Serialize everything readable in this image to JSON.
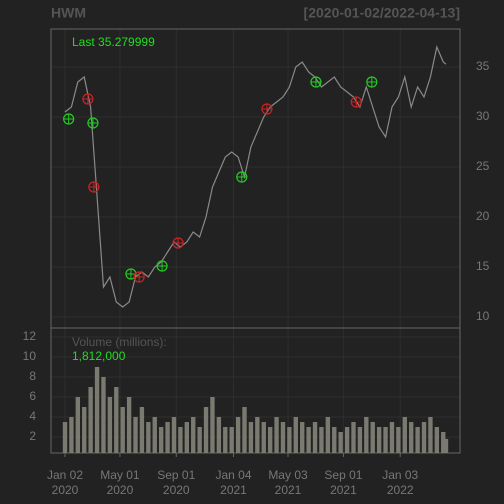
{
  "chart_data": {
    "type": "line",
    "title": "HWM",
    "subtitle": "[2020-01-02/2022-04-13]",
    "last_label": "Last 35.279999",
    "x": [
      "2020-01-02",
      "2020-01-16",
      "2020-01-30",
      "2020-02-13",
      "2020-02-27",
      "2020-03-12",
      "2020-03-26",
      "2020-04-09",
      "2020-04-23",
      "2020-05-07",
      "2020-05-21",
      "2020-06-04",
      "2020-06-18",
      "2020-07-02",
      "2020-07-16",
      "2020-07-30",
      "2020-08-13",
      "2020-08-27",
      "2020-09-10",
      "2020-09-24",
      "2020-10-08",
      "2020-10-22",
      "2020-11-05",
      "2020-11-19",
      "2020-12-03",
      "2020-12-17",
      "2020-12-31",
      "2021-01-14",
      "2021-01-28",
      "2021-02-11",
      "2021-02-25",
      "2021-03-11",
      "2021-03-25",
      "2021-04-08",
      "2021-04-22",
      "2021-05-06",
      "2021-05-20",
      "2021-06-03",
      "2021-06-17",
      "2021-07-01",
      "2021-07-15",
      "2021-07-29",
      "2021-08-12",
      "2021-08-26",
      "2021-09-09",
      "2021-09-23",
      "2021-10-07",
      "2021-10-21",
      "2021-11-04",
      "2021-11-18",
      "2021-12-02",
      "2021-12-16",
      "2021-12-30",
      "2022-01-13",
      "2022-01-27",
      "2022-02-10",
      "2022-02-24",
      "2022-03-10",
      "2022-03-24",
      "2022-04-07",
      "2022-04-13"
    ],
    "color": "#8a8a8a",
    "values": [
      30.5,
      31,
      33.5,
      34,
      31,
      22,
      13,
      14,
      11.5,
      11,
      11.5,
      14,
      14.5,
      14,
      15,
      15.5,
      16.5,
      17.5,
      17,
      17.5,
      18.5,
      18,
      20,
      23,
      24.5,
      26,
      26.5,
      26,
      24,
      27,
      28.5,
      30,
      31,
      31.5,
      32,
      33,
      35,
      35.5,
      34.5,
      34,
      33,
      33.5,
      34,
      33,
      32.5,
      32,
      31,
      33,
      31,
      29,
      28,
      31,
      32,
      34,
      31,
      33,
      32,
      34,
      37,
      35.5,
      35.28
    ],
    "xlim": [
      "2020-01-02",
      "2022-04-13"
    ],
    "xticks": [
      {
        "value": "2020-01-02",
        "label": "Jan 02\n2020"
      },
      {
        "value": "2020-05-01",
        "label": "May 01\n2020"
      },
      {
        "value": "2020-09-01",
        "label": "Sep 01\n2020"
      },
      {
        "value": "2021-01-04",
        "label": "Jan 04\n2021"
      },
      {
        "value": "2021-05-03",
        "label": "May 03\n2021"
      },
      {
        "value": "2021-09-01",
        "label": "Sep 01\n2021"
      },
      {
        "value": "2022-01-03",
        "label": "Jan 03\n2022"
      }
    ],
    "ylim": [
      8.9,
      38.8
    ],
    "yticks": [
      10,
      15,
      20,
      25,
      30,
      35
    ],
    "grid": true,
    "buy_signals": {
      "color": "#22cc22",
      "x": [
        "2020-01-10",
        "2020-03-03",
        "2020-05-25",
        "2020-08-01",
        "2021-01-22",
        "2021-07-03",
        "2021-11-02"
      ],
      "values": [
        29.8,
        29.4,
        14.3,
        15.1,
        24,
        33.5,
        33.5
      ]
    },
    "sell_signals": {
      "color": "#cc2222",
      "x": [
        "2020-02-21",
        "2020-03-05",
        "2020-06-12",
        "2020-09-05",
        "2021-03-18",
        "2021-09-29"
      ],
      "values": [
        31.8,
        23,
        14,
        17.4,
        30.8,
        31.5
      ]
    },
    "volume": {
      "label": "Volume (millions):",
      "last_label": "1,812,000",
      "color": "#7a7a70",
      "ylim": [
        0.4,
        12.9
      ],
      "yticks": [
        2,
        4,
        6,
        8,
        10,
        12
      ],
      "values": [
        3.5,
        4,
        6,
        5,
        7,
        9,
        8,
        6,
        7,
        5,
        6,
        4,
        5,
        3.5,
        4,
        3,
        3.5,
        4,
        3,
        3.5,
        4,
        3,
        5,
        6,
        4,
        3,
        3,
        4,
        5,
        3.5,
        4,
        3.5,
        3,
        4,
        3.5,
        3,
        4,
        3.5,
        3,
        3.5,
        3,
        4,
        3,
        2.5,
        3,
        3.5,
        3,
        4,
        3.5,
        3,
        3,
        3.5,
        3,
        4,
        3.5,
        3,
        3.5,
        4,
        3,
        2.5,
        1.812
      ]
    }
  }
}
